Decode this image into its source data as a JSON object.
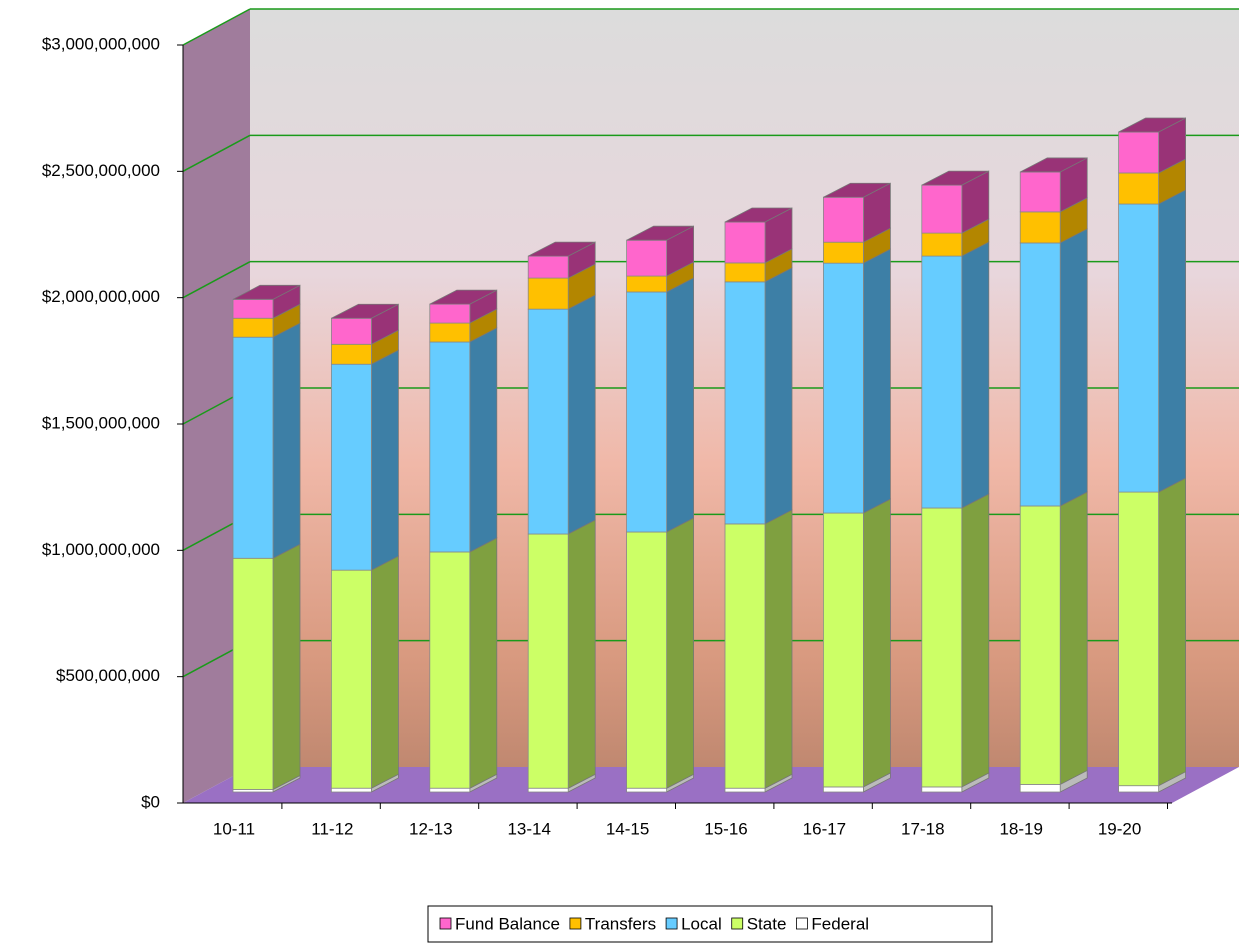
{
  "chart_data": {
    "type": "bar3d-stacked",
    "categories": [
      "10-11",
      "11-12",
      "12-13",
      "13-14",
      "14-15",
      "15-16",
      "16-17",
      "17-18",
      "18-19",
      "19-20"
    ],
    "series": [
      {
        "name": "Federal",
        "color": "#ffffff",
        "side": "#bbbbbb",
        "values": [
          10000000,
          15000000,
          15000000,
          15000000,
          15000000,
          15000000,
          20000000,
          20000000,
          30000000,
          25000000
        ]
      },
      {
        "name": "State",
        "color": "#ccff66",
        "side": "#7fa040",
        "values": [
          915000000,
          863000000,
          935000000,
          1006000000,
          1014000000,
          1046000000,
          1084000000,
          1104000000,
          1102000000,
          1162000000
        ]
      },
      {
        "name": "Local",
        "color": "#66ccff",
        "side": "#3d7fa6",
        "values": [
          875000000,
          815000000,
          831000000,
          890000000,
          950000000,
          958000000,
          989000000,
          997000000,
          1041000000,
          1140000000
        ]
      },
      {
        "name": "Transfers",
        "color": "#ffc000",
        "side": "#b38600",
        "values": [
          75000000,
          79000000,
          75000000,
          123000000,
          63000000,
          75000000,
          83000000,
          91000000,
          123000000,
          123000000
        ]
      },
      {
        "name": "Fund Balance",
        "color": "#ff66cc",
        "side": "#993377",
        "values": [
          75000000,
          103000000,
          75000000,
          87000000,
          142000000,
          162000000,
          178000000,
          190000000,
          158000000,
          162000000
        ]
      }
    ],
    "ylim": [
      0,
      3000000000
    ],
    "yticks": [
      {
        "value": 0,
        "label": "$0"
      },
      {
        "value": 500000000,
        "label": "$500,000,000"
      },
      {
        "value": 1000000000,
        "label": "$1,000,000,000"
      },
      {
        "value": 1500000000,
        "label": "$1,500,000,000"
      },
      {
        "value": 2000000000,
        "label": "$2,000,000,000"
      },
      {
        "value": 2500000000,
        "label": "$2,500,000,000"
      },
      {
        "value": 3000000000,
        "label": "$3,000,000,000"
      }
    ],
    "grid": true,
    "grid_color": "#1a9a1a",
    "legend": "bottom"
  }
}
